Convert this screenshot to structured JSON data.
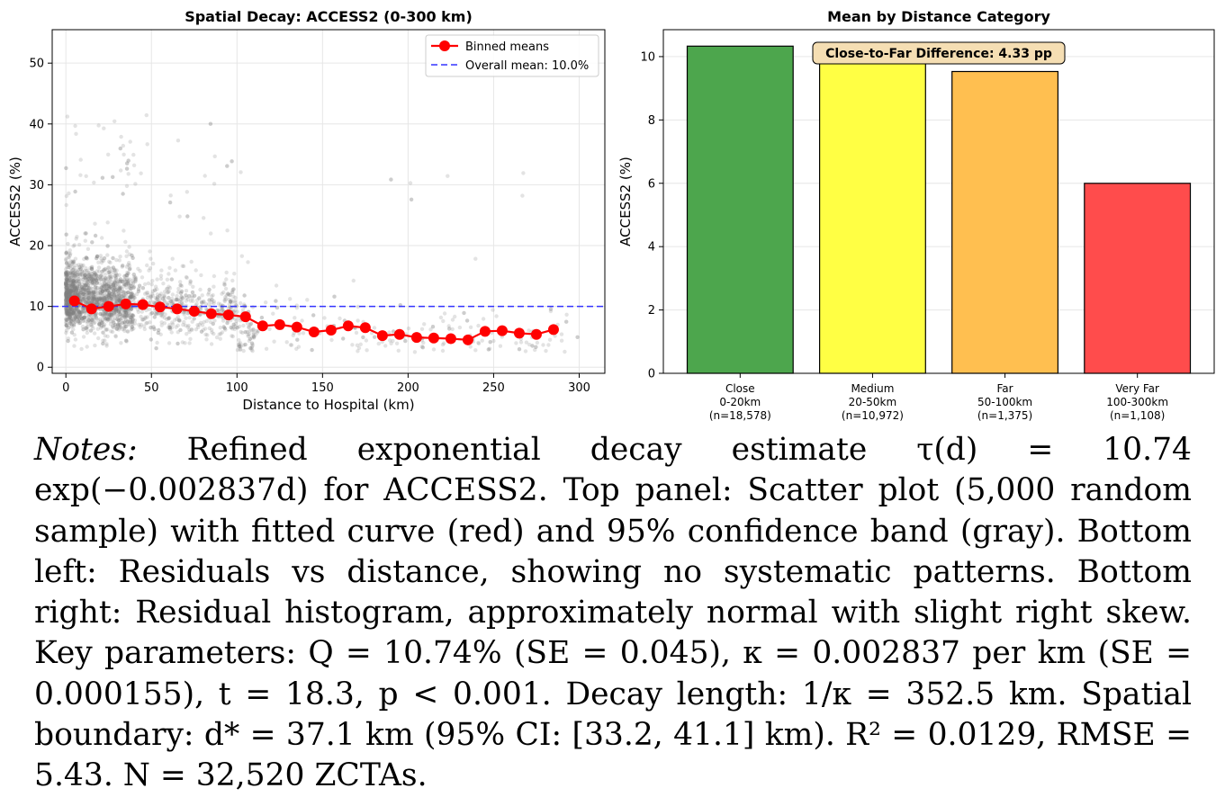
{
  "chart_data": [
    {
      "type": "scatter",
      "title": "Spatial Decay: ACCESS2 (0-300 km)",
      "xlabel": "Distance to Hospital (km)",
      "ylabel": "ACCESS2 (%)",
      "xlim": [
        -8,
        315
      ],
      "ylim": [
        -1,
        55.5
      ],
      "xticks": [
        0,
        50,
        100,
        150,
        200,
        250,
        300
      ],
      "yticks": [
        0,
        10,
        20,
        30,
        40,
        50
      ],
      "grid": true,
      "legend": {
        "placement": "top-right",
        "entries": [
          "Binned means",
          "Overall mean: 10.0%"
        ]
      },
      "overall_mean": 10.0,
      "series": [
        {
          "name": "Binned means",
          "color": "#ff0000",
          "x": [
            5,
            15,
            25,
            35,
            45,
            55,
            65,
            75,
            85,
            95,
            105,
            115,
            125,
            135,
            145,
            155,
            165,
            175,
            185,
            195,
            205,
            215,
            225,
            235,
            245,
            255,
            265,
            275,
            285
          ],
          "y": [
            10.9,
            9.6,
            10.0,
            10.4,
            10.3,
            9.9,
            9.6,
            9.2,
            8.8,
            8.6,
            8.3,
            6.8,
            7.0,
            6.6,
            5.8,
            6.1,
            6.8,
            6.5,
            5.2,
            5.4,
            4.9,
            4.8,
            4.7,
            4.5,
            5.9,
            6.0,
            5.6,
            5.4,
            6.2
          ]
        },
        {
          "name": "Overall mean: 10.0%",
          "color": "#0000ff",
          "y": 10.0
        }
      ]
    },
    {
      "type": "bar",
      "title": "Mean by Distance Category",
      "ylabel": "ACCESS2 (%)",
      "ylim": [
        0,
        10.85
      ],
      "yticks": [
        0,
        2,
        4,
        6,
        8,
        10
      ],
      "categories": [
        {
          "name": "Close",
          "range": "0-20km",
          "n": "(n=18,578)"
        },
        {
          "name": "Medium",
          "range": "20-50km",
          "n": "(n=10,972)"
        },
        {
          "name": "Far",
          "range": "50-100km",
          "n": "(n=1,375)"
        },
        {
          "name": "Very Far",
          "range": "100-300km",
          "n": "(n=1,108)"
        }
      ],
      "values": [
        10.33,
        10.0,
        9.53,
        6.0
      ],
      "colors": [
        "#4da64d",
        "#ffff44",
        "#ffbf50",
        "#ff4c4c"
      ],
      "annotation": "Close-to-Far Difference: 4.33 pp"
    }
  ],
  "notes": {
    "label": "Notes:",
    "text": "Refined exponential decay estimate τ(d) = 10.74 exp(−0.002837d) for ACCESS2. Top panel: Scatter plot (5,000 random sample) with fitted curve (red) and 95% confidence band (gray). Bottom left: Residuals vs distance, showing no systematic patterns. Bottom right: Residual histogram, approximately normal with slight right skew. Key parameters: Q = 10.74% (SE = 0.045), κ = 0.002837 per km (SE = 0.000155), t = 18.3, p < 0.001. Decay length: 1/κ = 352.5 km. Spatial boundary: d* = 37.1 km (95% CI: [33.2, 41.1] km). R² = 0.0129, RMSE = 5.43. N = 32,520 ZCTAs."
  }
}
